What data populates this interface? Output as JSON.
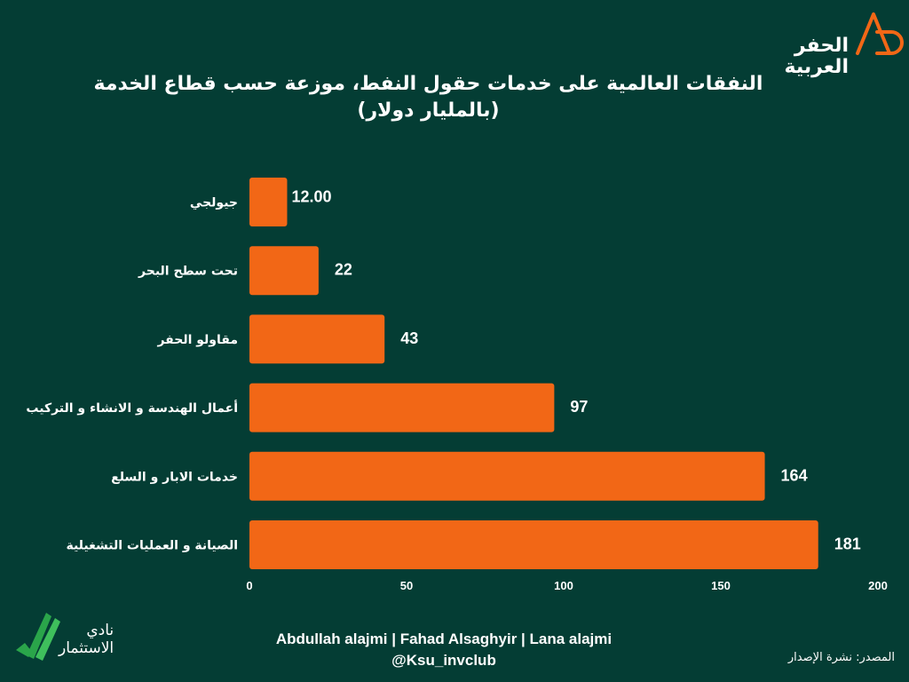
{
  "header": {
    "title_line1": "النفقات العالمية على خدمات حقول النفط، موزعة حسب قطاع الخدمة",
    "title_line2": "(بالمليار دولار)"
  },
  "brand": {
    "logo_text": "الحفر العربية",
    "logo_line1": "الحفر",
    "logo_line2": "العربية"
  },
  "club": {
    "line1": "نادي",
    "line2": "الاستثمار"
  },
  "footer": {
    "authors": "Abdullah alajmi | Fahad Alsaghyir | Lana alajmi",
    "handle": "@Ksu_invclub",
    "source": "المصدر: نشرة الإصدار"
  },
  "colors": {
    "background": "#043d34",
    "bar": "#f26716",
    "text": "#ffffff",
    "accent_green": "#2aa54a"
  },
  "chart_data": {
    "type": "bar",
    "orientation": "horizontal",
    "categories": [
      "جيولجي",
      "تحت سطح البحر",
      "مقاولو الحفر",
      "أعمال الهندسة و الانشاء و التركيب",
      "خدمات الابار و السلع",
      "الصيانة و العمليات التشغيلية"
    ],
    "values": [
      12,
      22,
      43,
      97,
      164,
      181
    ],
    "value_labels": [
      "12.00",
      "22",
      "43",
      "97",
      "164",
      "181"
    ],
    "xlim": [
      0,
      200
    ],
    "x_ticks": [
      0,
      50,
      100,
      150,
      200
    ],
    "grid": false,
    "legend": "none"
  }
}
